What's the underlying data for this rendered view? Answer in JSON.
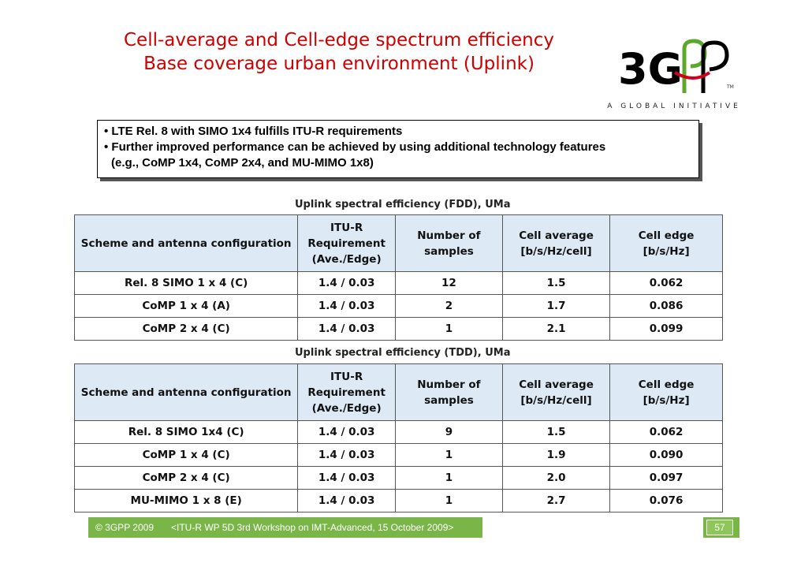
{
  "title": {
    "line1": "Cell-average and Cell-edge spectrum efficiency",
    "line2": "Base coverage urban environment (Uplink)"
  },
  "logo": {
    "brand": "3GPP",
    "tagline": "A GLOBAL INITIATIVE",
    "trademark": "TM"
  },
  "bullets": {
    "line1": "• LTE Rel. 8 with SIMO 1x4 fulfills ITU-R requirements",
    "line2": "• Further improved performance can be achieved by using additional technology features",
    "line3": "(e.g., CoMP 1x4, CoMP 2x4, and MU-MIMO 1x8)"
  },
  "headers": {
    "scheme": "Scheme and antenna configuration",
    "req1": "ITU-R",
    "req2": "Requirement",
    "req3": "(Ave./Edge)",
    "num1": "Number of",
    "num2": "samples",
    "avg1": "Cell average",
    "avg2": "[b/s/Hz/cell]",
    "edge1": "Cell edge",
    "edge2": "[b/s/Hz]"
  },
  "fdd": {
    "caption": "Uplink spectral efficiency (FDD), UMa",
    "rows": [
      {
        "scheme": "Rel. 8 SIMO 1 x 4 (C)",
        "req": "1.4 / 0.03",
        "samples": "12",
        "avg": "1.5",
        "edge": "0.062"
      },
      {
        "scheme": "CoMP 1 x 4 (A)",
        "req": "1.4 / 0.03",
        "samples": "2",
        "avg": "1.7",
        "edge": "0.086"
      },
      {
        "scheme": "CoMP 2 x 4 (C)",
        "req": "1.4 / 0.03",
        "samples": "1",
        "avg": "2.1",
        "edge": "0.099"
      }
    ]
  },
  "tdd": {
    "caption": "Uplink spectral efficiency (TDD), UMa",
    "rows": [
      {
        "scheme": "Rel. 8 SIMO 1x4 (C)",
        "req": "1.4 / 0.03",
        "samples": "9",
        "avg": "1.5",
        "edge": "0.062"
      },
      {
        "scheme": "CoMP 1 x 4 (C)",
        "req": "1.4 / 0.03",
        "samples": "1",
        "avg": "1.9",
        "edge": "0.090"
      },
      {
        "scheme": "CoMP 2 x 4 (C)",
        "req": "1.4 / 0.03",
        "samples": "1",
        "avg": "2.0",
        "edge": "0.097"
      },
      {
        "scheme": "MU-MIMO 1 x 8 (E)",
        "req": "1.4 / 0.03",
        "samples": "1",
        "avg": "2.7",
        "edge": "0.076"
      }
    ]
  },
  "footer": {
    "copyright": "© 3GPP 2009",
    "workshop": "<ITU-R WP 5D 3rd Workshop on IMT-Advanced, 15 October 2009>",
    "page": "57"
  },
  "colors": {
    "title": "#cc0000",
    "header_fill": "#dde9f5",
    "footer": "#7ab547",
    "logo_red": "#d0021b",
    "logo_green": "#5ca82c"
  }
}
